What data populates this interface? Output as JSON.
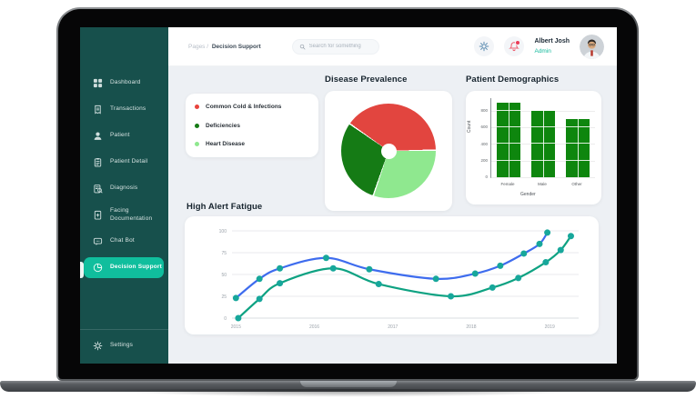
{
  "header": {
    "breadcrumb": {
      "prefix": "Pages /",
      "current": "Decision Support"
    },
    "search_placeholder": "Search for something",
    "user": {
      "name": "Albert Josh",
      "role": "Admin"
    }
  },
  "sidebar": {
    "colors": {
      "background": "#17504C",
      "active": "#10BE9D"
    },
    "items": [
      {
        "label": "Dashboard",
        "icon": "grid",
        "active": false
      },
      {
        "label": "Transactions",
        "icon": "receipt",
        "active": false
      },
      {
        "label": "Patient",
        "icon": "person",
        "active": false
      },
      {
        "label": "Patient Detail",
        "icon": "clipboard",
        "active": false
      },
      {
        "label": "Diagnosis",
        "icon": "clipboard-search",
        "active": false
      },
      {
        "label": "Facing Documentation",
        "icon": "file-plus",
        "active": false
      },
      {
        "label": "Chat Bot",
        "icon": "chat",
        "active": false
      },
      {
        "label": "Decision Support",
        "icon": "pie",
        "active": true
      }
    ],
    "settings": {
      "label": "Settings",
      "icon": "gear",
      "active": false
    }
  },
  "chart_data": [
    {
      "type": "pie",
      "title": "Disease Prevalence",
      "start_angle": -55,
      "slices": [
        {
          "label": "Common Cold & Infections",
          "value": 40,
          "color": "#E2453F"
        },
        {
          "label": "Heart Disease",
          "value": 30.5,
          "color": "#8FE88F"
        },
        {
          "label": "Deficiencies",
          "value": 29.5,
          "color": "#157B15"
        }
      ],
      "legend": [
        {
          "label": "Common Cold & Infections",
          "color": "#E8433C"
        },
        {
          "label": "Deficiencies",
          "color": "#157B15"
        },
        {
          "label": "Heart Disease",
          "color": "#8FE88F"
        }
      ],
      "donut_hole_ratio": 0.16
    },
    {
      "type": "bar",
      "title": "Patient Demographics",
      "categories": [
        "Female",
        "Male",
        "Other"
      ],
      "values": [
        900,
        800,
        700
      ],
      "xlabel": "Gender",
      "ylabel": "Count",
      "yticks": [
        0,
        200,
        400,
        600,
        800
      ],
      "ylim": [
        0,
        950
      ],
      "bar_color": "#0E860E",
      "grid": true
    },
    {
      "type": "line",
      "title": "High Alert Fatigue",
      "xticks": [
        2015,
        2016,
        2017,
        2018,
        2019
      ],
      "yticks": [
        0,
        25,
        50,
        75,
        100
      ],
      "xlim": [
        2014.95,
        2019.45
      ],
      "ylim": [
        0,
        100
      ],
      "point_color": "#17A79B",
      "grid": true,
      "series": [
        {
          "name": "alert-series-blue",
          "color": "#3E6CEE",
          "x": [
            2015.0,
            2015.3,
            2015.56,
            2016.15,
            2016.7,
            2017.55,
            2018.05,
            2018.37,
            2018.67,
            2018.87,
            2018.97
          ],
          "y": [
            23,
            45,
            57,
            69,
            56,
            45,
            51,
            60,
            74,
            85,
            98
          ]
        },
        {
          "name": "alert-series-green",
          "color": "#0EA282",
          "x": [
            2015.03,
            2015.3,
            2015.56,
            2016.24,
            2016.82,
            2017.74,
            2018.27,
            2018.6,
            2018.95,
            2019.14,
            2019.27
          ],
          "y": [
            0,
            22,
            40,
            57,
            39,
            25,
            35,
            46,
            64,
            78,
            94
          ]
        }
      ]
    }
  ]
}
